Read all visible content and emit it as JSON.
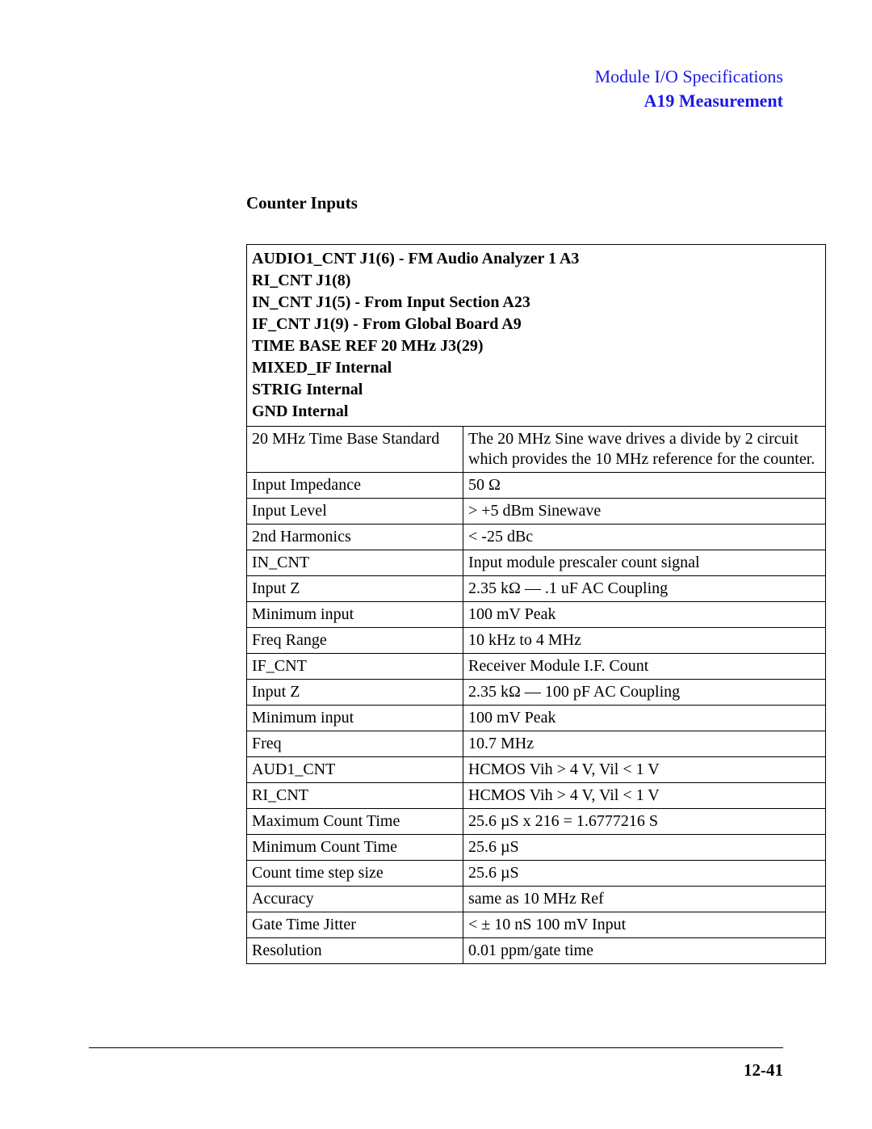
{
  "header": {
    "title": "Module I/O Specifications",
    "subtitle": "A19 Measurement"
  },
  "section_title": "Counter Inputs",
  "table_header_lines": [
    "AUDIO1_CNT J1(6) - FM Audio Analyzer 1 A3",
    "RI_CNT J1(8)",
    "IN_CNT J1(5) - From Input Section A23",
    "IF_CNT J1(9) - From Global Board A9",
    "TIME BASE REF 20 MHz J3(29)",
    "MIXED_IF Internal",
    "STRIG Internal",
    "GND Internal"
  ],
  "rows": [
    {
      "param": "20 MHz Time Base Standard",
      "value": "The 20 MHz Sine wave drives a divide by 2 circuit which provides the 10 MHz reference for the counter."
    },
    {
      "param": "Input Impedance",
      "value": "50 Ω"
    },
    {
      "param": "Input Level",
      "value": "> +5 dBm Sinewave"
    },
    {
      "param": "2nd Harmonics",
      "value": "< -25 dBc"
    },
    {
      "param": "IN_CNT",
      "value": "Input module prescaler count signal"
    },
    {
      "param": "Input Z",
      "value": "2.35 kΩ — .1 uF AC Coupling"
    },
    {
      "param": "Minimum input",
      "value": "100 mV Peak"
    },
    {
      "param": "Freq Range",
      "value": "10 kHz to 4 MHz"
    },
    {
      "param": "IF_CNT",
      "value": "Receiver Module I.F. Count"
    },
    {
      "param": "Input Z",
      "value": "2.35 kΩ — 100 pF AC Coupling"
    },
    {
      "param": "Minimum input",
      "value": "100 mV Peak"
    },
    {
      "param": "Freq",
      "value": "10.7 MHz"
    },
    {
      "param": "AUD1_CNT",
      "value": "HCMOS  Vih > 4 V, Vil < 1 V"
    },
    {
      "param": "RI_CNT",
      "value": "HCMOS Vih > 4 V, Vil < 1 V"
    },
    {
      "param": "Maximum Count Time",
      "value": "25.6 µS x 216  =  1.6777216 S"
    },
    {
      "param": "Minimum Count Time",
      "value": "25.6 µS"
    },
    {
      "param": "Count time step size",
      "value": "25.6 µS"
    },
    {
      "param": "Accuracy",
      "value": "same as 10 MHz Ref"
    },
    {
      "param": "Gate Time Jitter",
      "value": "< ± 10 nS     100 mV Input"
    },
    {
      "param": "Resolution",
      "value": "0.01 ppm/gate time"
    }
  ],
  "page_number": "12-41",
  "colors": {
    "link_blue": "#1a1ae6",
    "text": "#000000",
    "background": "#ffffff",
    "border": "#000000"
  },
  "fonts": {
    "family": "Times New Roman",
    "body_size_pt": 15,
    "header_size_pt": 16
  }
}
